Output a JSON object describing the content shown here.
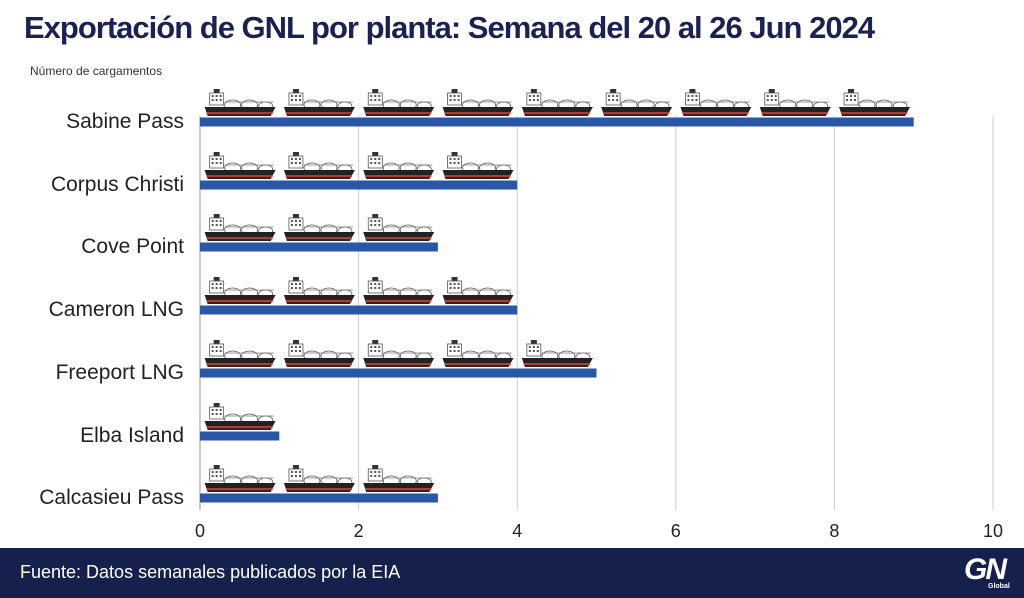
{
  "colors": {
    "title": "#1c2153",
    "bar": "#2a56a8",
    "footer": "#16204d",
    "grid": "#cccccc",
    "ship_hull": "#222222",
    "ship_stripe": "#b23a2e",
    "ship_tanks": "#ffffff"
  },
  "header": {
    "title": "Exportación de GNL por planta: Semana del  20 al 26 Jun 2024"
  },
  "footer": {
    "source": "Fuente: Datos semanales publicados por la EIA",
    "logo_mark": "GN",
    "logo_sub": "Global"
  },
  "chart_data": {
    "type": "bar",
    "orientation": "horizontal",
    "title": "Exportación de GNL por planta: Semana del  20 al 26 Jun 2024",
    "xlabel": "",
    "ylabel": "Número de cargamentos",
    "categories": [
      "Sabine Pass",
      "Corpus Christi",
      "Cove Point",
      "Cameron LNG",
      "Freeport LNG",
      "Elba Island",
      "Calcasieu Pass"
    ],
    "values": [
      9,
      4,
      3,
      4,
      5,
      1,
      3
    ],
    "xlim": [
      0,
      10
    ],
    "xticks": [
      "0",
      "2",
      "4",
      "6",
      "8",
      "10"
    ],
    "grid": true,
    "mark_icon": "lng-tanker-icon"
  }
}
